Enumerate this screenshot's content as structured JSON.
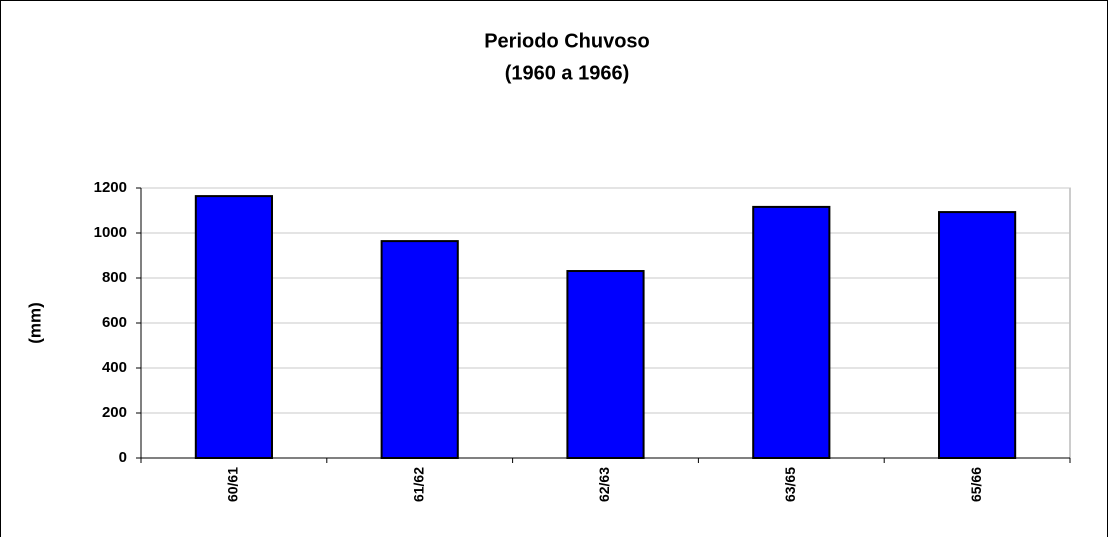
{
  "chart_data": {
    "type": "bar",
    "title": "Periodo Chuvoso",
    "subtitle": "(1960 a 1966)",
    "y_label": "(mm)",
    "categories": [
      "60/61",
      "61/62",
      "62/63",
      "63/65",
      "65/66"
    ],
    "values": [
      1164,
      964,
      831,
      1116,
      1093
    ],
    "color": "#0000ff",
    "ylim": [
      0,
      1200
    ],
    "yticks": [
      0,
      200,
      400,
      600,
      800,
      1000,
      1200
    ],
    "grid": true
  }
}
